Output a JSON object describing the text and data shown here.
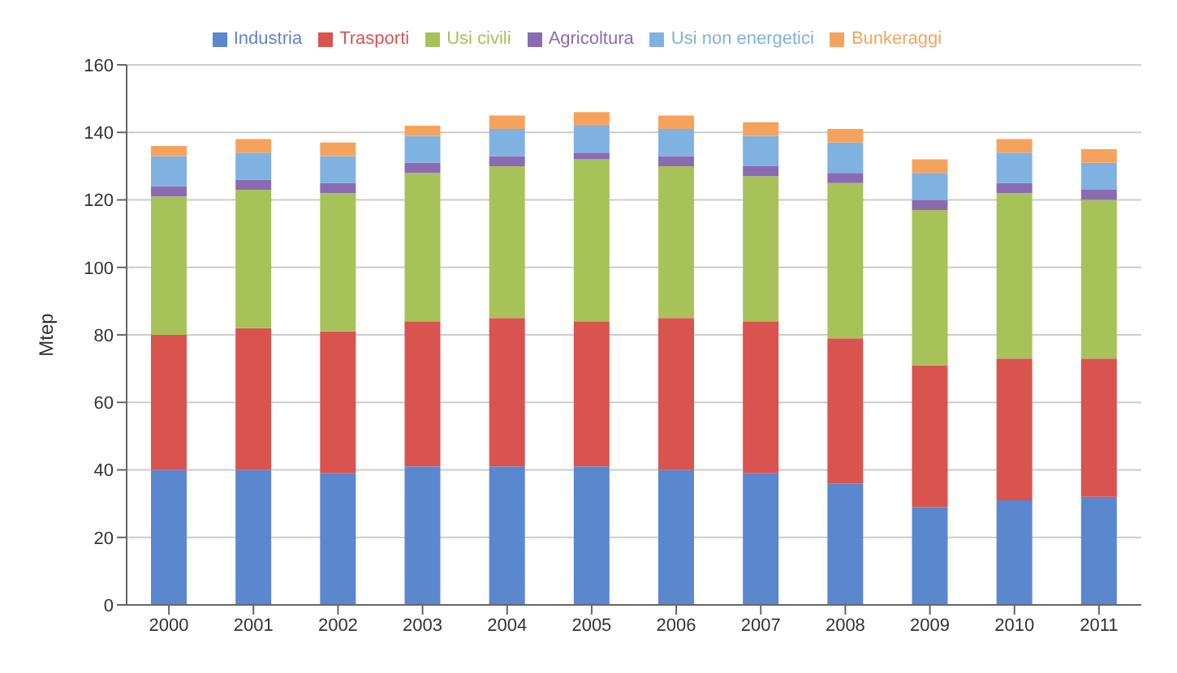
{
  "chart_data": {
    "type": "bar",
    "stacked": true,
    "ylabel": "Mtep",
    "categories": [
      "2000",
      "2001",
      "2002",
      "2003",
      "2004",
      "2005",
      "2006",
      "2007",
      "2008",
      "2009",
      "2010",
      "2011"
    ],
    "series": [
      {
        "name": "Industria",
        "color": "#5b87cf",
        "values": [
          40,
          40,
          39,
          41,
          41,
          41,
          40,
          39,
          36,
          29,
          31,
          32
        ]
      },
      {
        "name": "Trasporti",
        "color": "#d9534f",
        "values": [
          40,
          42,
          42,
          43,
          44,
          43,
          45,
          45,
          43,
          42,
          42,
          41
        ]
      },
      {
        "name": "Usi civili",
        "color": "#a8c25a",
        "values": [
          41,
          41,
          41,
          44,
          45,
          48,
          45,
          43,
          46,
          46,
          49,
          47
        ]
      },
      {
        "name": "Agricoltura",
        "color": "#8a6bb3",
        "values": [
          3,
          3,
          3,
          3,
          3,
          2,
          3,
          3,
          3,
          3,
          3,
          3
        ]
      },
      {
        "name": "Usi non energetici",
        "color": "#7fb2e0",
        "values": [
          9,
          8,
          8,
          8,
          8,
          8,
          8,
          9,
          9,
          8,
          9,
          8
        ]
      },
      {
        "name": "Bunkeraggi",
        "color": "#f5a35c",
        "values": [
          3,
          4,
          4,
          3,
          4,
          4,
          4,
          4,
          4,
          4,
          4,
          4
        ]
      }
    ],
    "ylim": [
      0,
      160
    ],
    "yticks": [
      0,
      20,
      40,
      60,
      80,
      100,
      120,
      140,
      160
    ],
    "grid": "y",
    "legend": "top"
  }
}
